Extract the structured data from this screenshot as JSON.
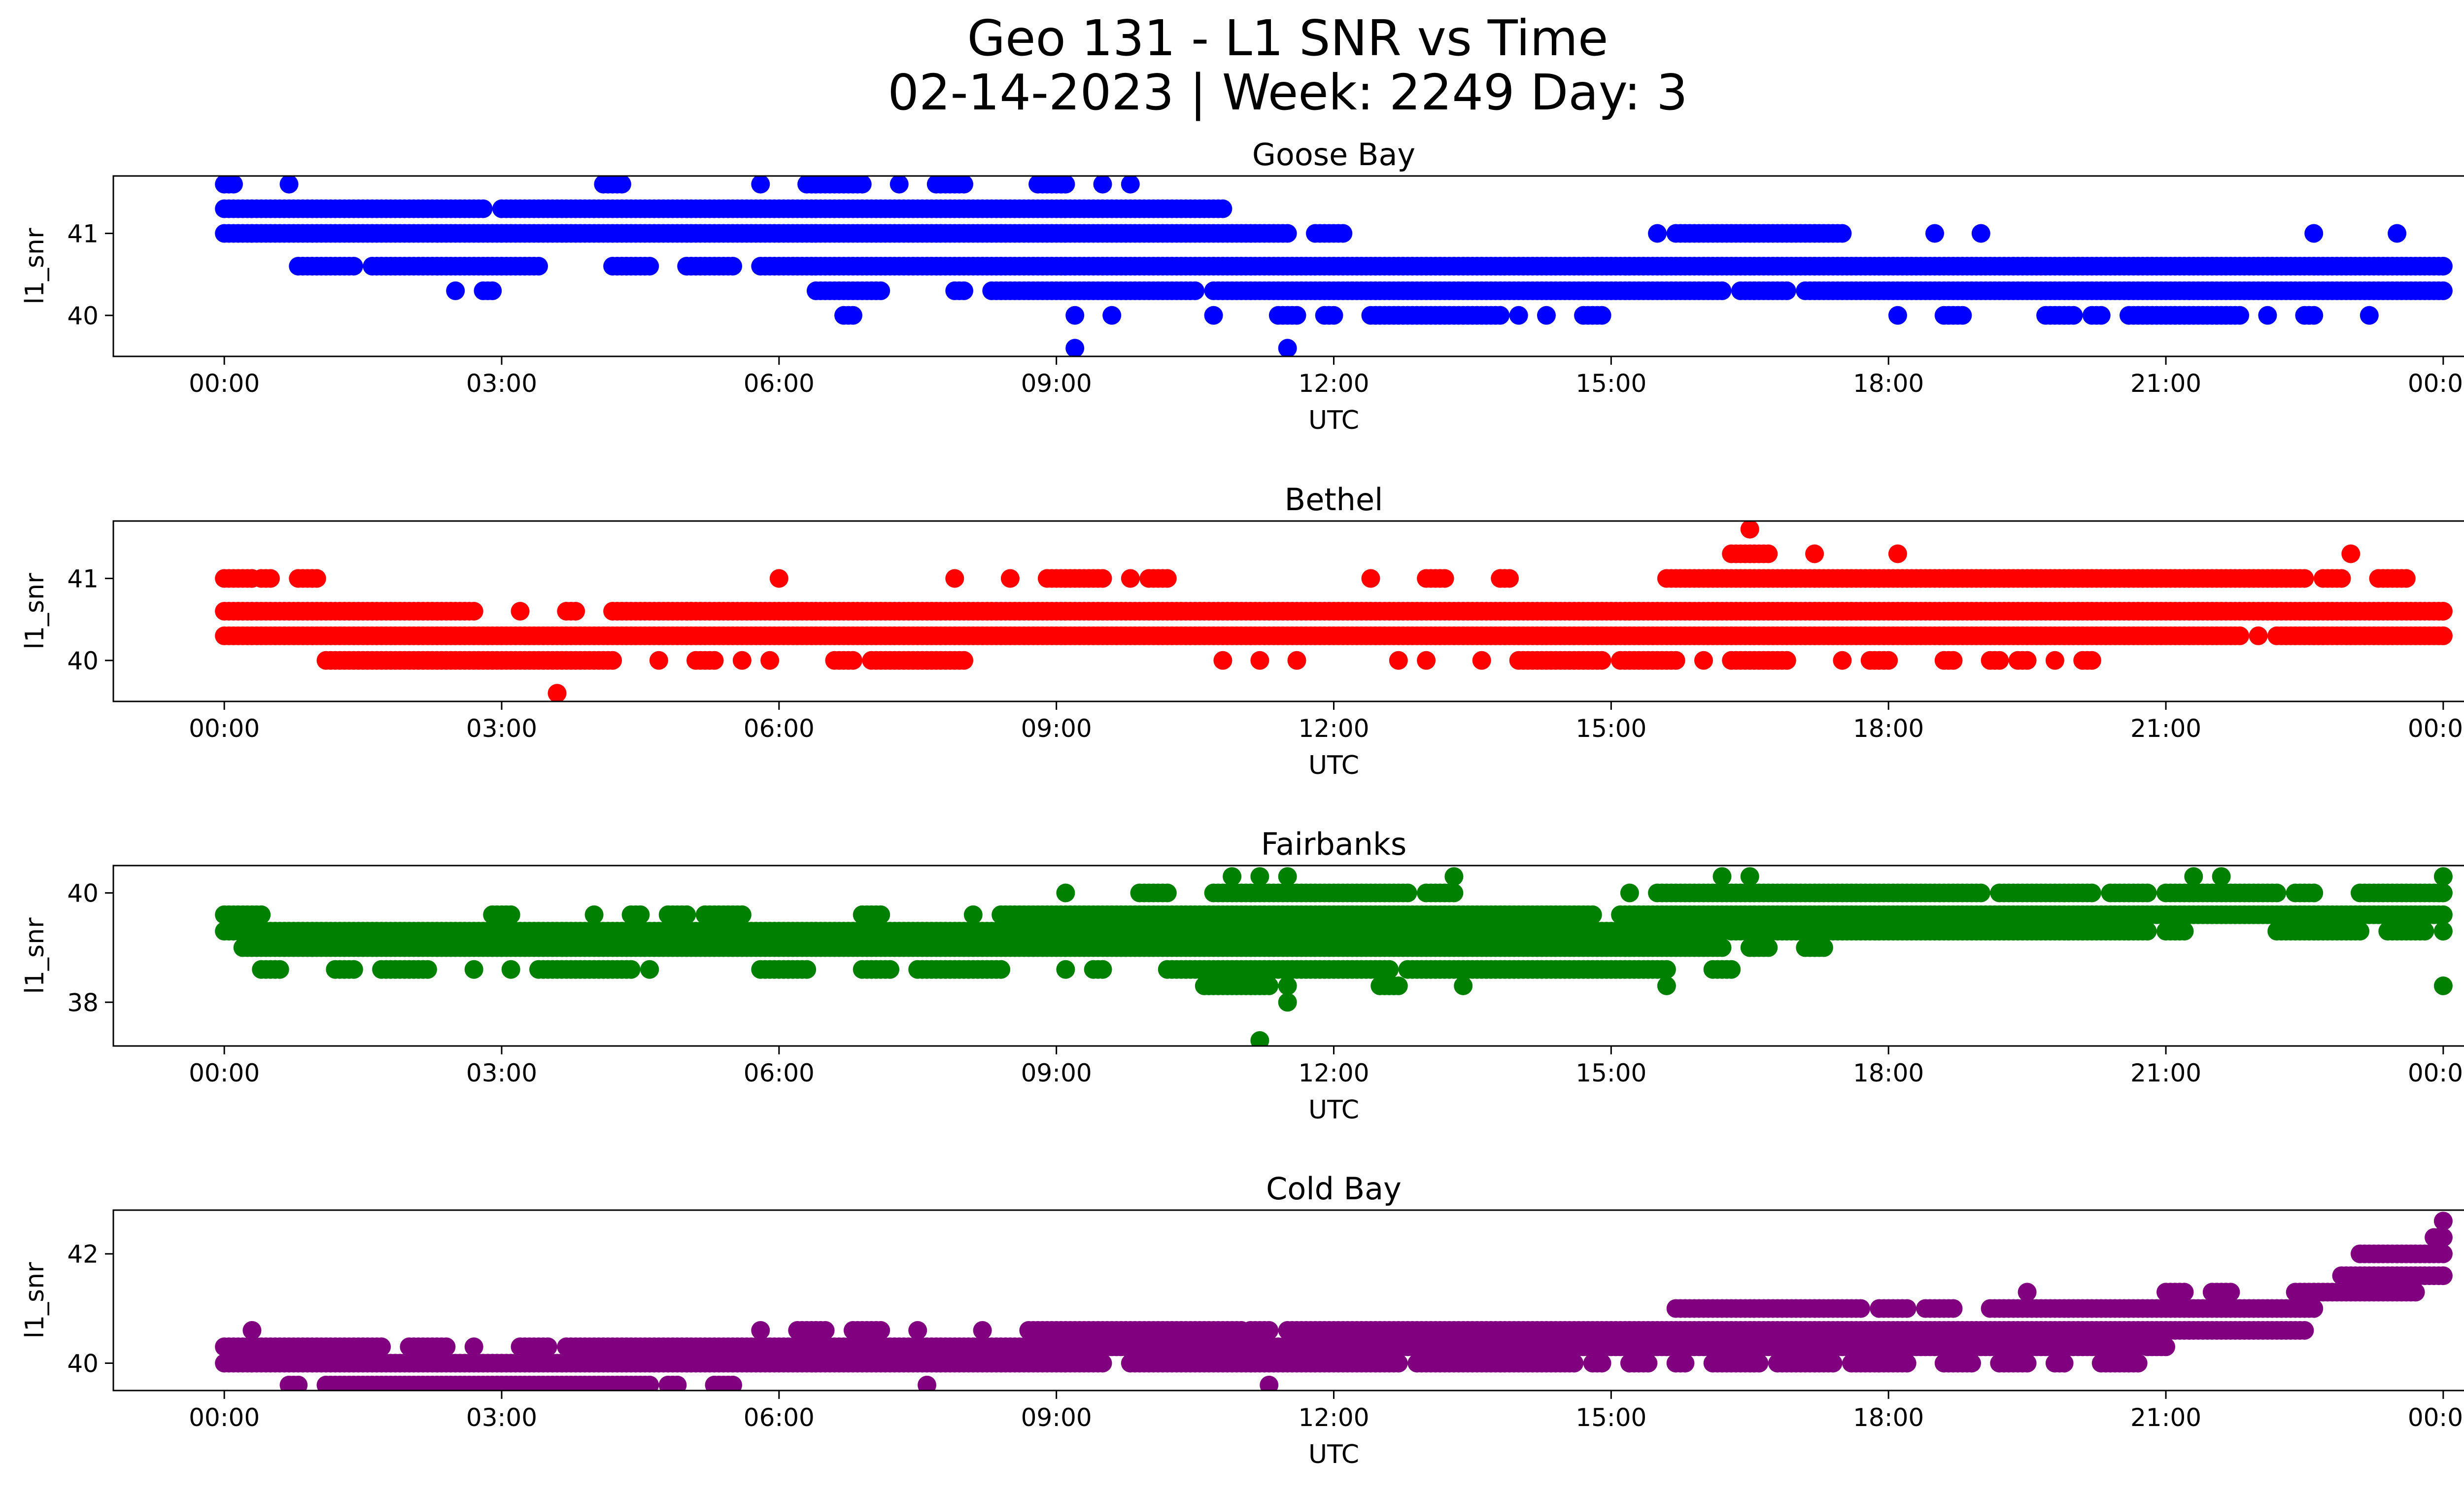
{
  "figure": {
    "title_line1": "Geo 131 - L1 SNR vs Time",
    "title_line2": "02-14-2023 | Week: 2249 Day: 3"
  },
  "chart_data": [
    {
      "type": "scatter",
      "title": "Goose Bay",
      "xlabel": "UTC",
      "ylabel": "l1_snr",
      "color": "#0000ff",
      "xticks": [
        "00:00",
        "03:00",
        "06:00",
        "09:00",
        "12:00",
        "15:00",
        "18:00",
        "21:00",
        "00:00"
      ],
      "xlim_hours": [
        -1.2,
        25.2
      ],
      "ylim": [
        39.5,
        41.7
      ],
      "yticks": [
        40,
        41
      ],
      "grid": false,
      "legend": "none",
      "bands": [
        {
          "y": 41.6,
          "ranges": [
            [
              0.0,
              0.1
            ],
            [
              0.7,
              0.7
            ],
            [
              4.1,
              4.3
            ],
            [
              5.8,
              5.8
            ],
            [
              6.3,
              6.9
            ],
            [
              7.3,
              7.3
            ],
            [
              7.7,
              8.0
            ],
            [
              8.8,
              9.1
            ],
            [
              9.5,
              9.5
            ],
            [
              9.8,
              9.8
            ]
          ]
        },
        {
          "y": 41.3,
          "ranges": [
            [
              0.0,
              2.8
            ],
            [
              3.0,
              10.8
            ]
          ]
        },
        {
          "y": 41.0,
          "ranges": [
            [
              0.0,
              11.5
            ],
            [
              11.8,
              12.1
            ],
            [
              15.5,
              15.5
            ],
            [
              15.7,
              17.5
            ],
            [
              18.5,
              18.5
            ],
            [
              19.0,
              19.0
            ],
            [
              22.6,
              22.6
            ],
            [
              23.5,
              23.5
            ]
          ]
        },
        {
          "y": 40.6,
          "ranges": [
            [
              0.8,
              1.4
            ],
            [
              1.6,
              3.4
            ],
            [
              4.2,
              4.6
            ],
            [
              5.0,
              5.5
            ],
            [
              5.8,
              24.0
            ]
          ]
        },
        {
          "y": 40.3,
          "ranges": [
            [
              2.5,
              2.5
            ],
            [
              2.8,
              2.9
            ],
            [
              6.4,
              7.1
            ],
            [
              7.9,
              8.0
            ],
            [
              8.3,
              10.5
            ],
            [
              10.7,
              16.2
            ],
            [
              16.4,
              16.9
            ],
            [
              17.1,
              24.0
            ]
          ]
        },
        {
          "y": 40.0,
          "ranges": [
            [
              6.7,
              6.8
            ],
            [
              9.2,
              9.2
            ],
            [
              9.6,
              9.6
            ],
            [
              10.7,
              10.7
            ],
            [
              11.4,
              11.6
            ],
            [
              11.9,
              12.0
            ],
            [
              12.4,
              13.8
            ],
            [
              14.0,
              14.0
            ],
            [
              14.3,
              14.3
            ],
            [
              14.7,
              14.9
            ],
            [
              18.1,
              18.1
            ],
            [
              18.6,
              18.8
            ],
            [
              19.7,
              20.0
            ],
            [
              20.2,
              20.3
            ],
            [
              20.6,
              21.8
            ],
            [
              22.1,
              22.1
            ],
            [
              22.5,
              22.6
            ],
            [
              23.2,
              23.2
            ]
          ]
        },
        {
          "y": 39.6,
          "ranges": [
            [
              9.2,
              9.2
            ],
            [
              11.5,
              11.5
            ]
          ]
        }
      ]
    },
    {
      "type": "scatter",
      "title": "Bethel",
      "xlabel": "UTC",
      "ylabel": "l1_snr",
      "color": "#ff0000",
      "xticks": [
        "00:00",
        "03:00",
        "06:00",
        "09:00",
        "12:00",
        "15:00",
        "18:00",
        "21:00",
        "00:00"
      ],
      "xlim_hours": [
        -1.2,
        25.2
      ],
      "ylim": [
        39.5,
        41.7
      ],
      "yticks": [
        40,
        41
      ],
      "grid": false,
      "legend": "none",
      "bands": [
        {
          "y": 41.6,
          "ranges": [
            [
              16.5,
              16.5
            ]
          ]
        },
        {
          "y": 41.3,
          "ranges": [
            [
              16.3,
              16.7
            ],
            [
              17.2,
              17.2
            ],
            [
              18.1,
              18.1
            ],
            [
              23.0,
              23.0
            ]
          ]
        },
        {
          "y": 41.0,
          "ranges": [
            [
              0.0,
              0.3
            ],
            [
              0.4,
              0.5
            ],
            [
              0.8,
              1.0
            ],
            [
              6.0,
              6.0
            ],
            [
              7.9,
              7.9
            ],
            [
              8.5,
              8.5
            ],
            [
              8.9,
              9.5
            ],
            [
              9.8,
              9.8
            ],
            [
              10.0,
              10.2
            ],
            [
              12.4,
              12.4
            ],
            [
              13.0,
              13.2
            ],
            [
              13.8,
              13.9
            ],
            [
              15.6,
              22.5
            ],
            [
              22.7,
              22.9
            ],
            [
              23.3,
              23.6
            ]
          ]
        },
        {
          "y": 40.6,
          "ranges": [
            [
              0.0,
              2.7
            ],
            [
              3.2,
              3.2
            ],
            [
              3.7,
              3.8
            ],
            [
              4.2,
              24.0
            ]
          ]
        },
        {
          "y": 40.3,
          "ranges": [
            [
              0.0,
              21.8
            ],
            [
              22.0,
              22.0
            ],
            [
              22.2,
              24.0
            ]
          ]
        },
        {
          "y": 40.0,
          "ranges": [
            [
              1.1,
              4.2
            ],
            [
              4.7,
              4.7
            ],
            [
              5.1,
              5.3
            ],
            [
              5.6,
              5.6
            ],
            [
              5.9,
              5.9
            ],
            [
              6.6,
              6.8
            ],
            [
              7.0,
              8.0
            ],
            [
              10.8,
              10.8
            ],
            [
              11.2,
              11.2
            ],
            [
              11.6,
              11.6
            ],
            [
              12.7,
              12.7
            ],
            [
              13.0,
              13.0
            ],
            [
              13.6,
              13.6
            ],
            [
              14.0,
              14.9
            ],
            [
              15.1,
              15.7
            ],
            [
              16.0,
              16.0
            ],
            [
              16.3,
              16.9
            ],
            [
              17.5,
              17.5
            ],
            [
              17.8,
              18.0
            ],
            [
              18.6,
              18.7
            ],
            [
              19.1,
              19.2
            ],
            [
              19.4,
              19.5
            ],
            [
              19.8,
              19.8
            ],
            [
              20.1,
              20.2
            ]
          ]
        },
        {
          "y": 39.6,
          "ranges": [
            [
              3.6,
              3.6
            ]
          ]
        }
      ]
    },
    {
      "type": "scatter",
      "title": "Fairbanks",
      "xlabel": "UTC",
      "ylabel": "l1_snr",
      "color": "#008000",
      "xticks": [
        "00:00",
        "03:00",
        "06:00",
        "09:00",
        "12:00",
        "15:00",
        "18:00",
        "21:00",
        "00:00"
      ],
      "xlim_hours": [
        -1.2,
        25.2
      ],
      "ylim": [
        37.2,
        40.5
      ],
      "yticks": [
        38,
        40
      ],
      "grid": false,
      "legend": "none",
      "bands": [
        {
          "y": 40.3,
          "ranges": [
            [
              10.9,
              10.9
            ],
            [
              11.2,
              11.2
            ],
            [
              11.5,
              11.5
            ],
            [
              13.3,
              13.3
            ],
            [
              16.2,
              16.2
            ],
            [
              16.5,
              16.5
            ],
            [
              21.3,
              21.3
            ],
            [
              21.6,
              21.6
            ],
            [
              24.0,
              24.0
            ]
          ]
        },
        {
          "y": 40.0,
          "ranges": [
            [
              9.1,
              9.1
            ],
            [
              9.9,
              10.2
            ],
            [
              10.7,
              12.8
            ],
            [
              13.0,
              13.3
            ],
            [
              15.2,
              15.2
            ],
            [
              15.5,
              19.0
            ],
            [
              19.2,
              20.2
            ],
            [
              20.4,
              20.8
            ],
            [
              21.0,
              22.2
            ],
            [
              22.4,
              22.6
            ],
            [
              23.1,
              24.0
            ]
          ]
        },
        {
          "y": 39.6,
          "ranges": [
            [
              0.0,
              0.4
            ],
            [
              2.9,
              3.1
            ],
            [
              4.0,
              4.0
            ],
            [
              4.4,
              4.5
            ],
            [
              4.8,
              5.0
            ],
            [
              5.2,
              5.6
            ],
            [
              6.9,
              7.1
            ],
            [
              8.1,
              8.1
            ],
            [
              8.4,
              14.8
            ],
            [
              15.1,
              24.0
            ]
          ]
        },
        {
          "y": 39.3,
          "ranges": [
            [
              0.0,
              16.2
            ],
            [
              16.3,
              20.8
            ],
            [
              21.0,
              21.2
            ],
            [
              22.2,
              23.1
            ],
            [
              23.4,
              23.8
            ],
            [
              24.0,
              24.0
            ]
          ]
        },
        {
          "y": 39.0,
          "ranges": [
            [
              0.2,
              16.2
            ],
            [
              16.5,
              16.7
            ],
            [
              17.1,
              17.3
            ]
          ]
        },
        {
          "y": 38.6,
          "ranges": [
            [
              0.4,
              0.6
            ],
            [
              1.2,
              1.4
            ],
            [
              1.7,
              2.2
            ],
            [
              2.7,
              2.7
            ],
            [
              3.1,
              3.1
            ],
            [
              3.4,
              4.4
            ],
            [
              4.6,
              4.6
            ],
            [
              5.8,
              6.3
            ],
            [
              6.9,
              7.2
            ],
            [
              7.5,
              8.4
            ],
            [
              9.1,
              9.1
            ],
            [
              9.4,
              9.5
            ],
            [
              10.2,
              12.6
            ],
            [
              12.8,
              15.6
            ],
            [
              16.1,
              16.3
            ]
          ]
        },
        {
          "y": 38.3,
          "ranges": [
            [
              10.6,
              11.3
            ],
            [
              11.5,
              11.5
            ],
            [
              12.5,
              12.7
            ],
            [
              13.4,
              13.4
            ],
            [
              15.6,
              15.6
            ],
            [
              24.0,
              24.0
            ]
          ]
        },
        {
          "y": 38.0,
          "ranges": [
            [
              11.5,
              11.5
            ]
          ]
        },
        {
          "y": 37.3,
          "ranges": [
            [
              11.2,
              11.2
            ]
          ]
        }
      ]
    },
    {
      "type": "scatter",
      "title": "Cold Bay",
      "xlabel": "UTC",
      "ylabel": "l1_snr",
      "color": "#800080",
      "xticks": [
        "00:00",
        "03:00",
        "06:00",
        "09:00",
        "12:00",
        "15:00",
        "18:00",
        "21:00",
        "00:00"
      ],
      "xlim_hours": [
        -1.2,
        25.2
      ],
      "ylim": [
        39.5,
        42.8
      ],
      "yticks": [
        40,
        42
      ],
      "grid": false,
      "legend": "none",
      "bands": [
        {
          "y": 42.6,
          "ranges": [
            [
              24.0,
              24.0
            ]
          ]
        },
        {
          "y": 42.3,
          "ranges": [
            [
              23.9,
              24.0
            ]
          ]
        },
        {
          "y": 42.0,
          "ranges": [
            [
              23.1,
              24.0
            ]
          ]
        },
        {
          "y": 41.6,
          "ranges": [
            [
              22.9,
              24.0
            ]
          ]
        },
        {
          "y": 41.3,
          "ranges": [
            [
              19.5,
              19.5
            ],
            [
              21.0,
              21.2
            ],
            [
              21.5,
              21.7
            ],
            [
              22.4,
              23.7
            ]
          ]
        },
        {
          "y": 41.0,
          "ranges": [
            [
              15.7,
              17.7
            ],
            [
              17.9,
              18.2
            ],
            [
              18.4,
              18.7
            ],
            [
              19.1,
              22.6
            ]
          ]
        },
        {
          "y": 40.6,
          "ranges": [
            [
              0.3,
              0.3
            ],
            [
              5.8,
              5.8
            ],
            [
              6.2,
              6.5
            ],
            [
              6.8,
              7.1
            ],
            [
              7.5,
              7.5
            ],
            [
              8.2,
              8.2
            ],
            [
              8.7,
              11.0
            ],
            [
              11.1,
              11.3
            ],
            [
              11.5,
              22.5
            ]
          ]
        },
        {
          "y": 40.3,
          "ranges": [
            [
              0.0,
              1.7
            ],
            [
              2.0,
              2.4
            ],
            [
              2.7,
              2.7
            ],
            [
              3.2,
              3.5
            ],
            [
              3.7,
              20.7
            ],
            [
              20.8,
              21.0
            ]
          ]
        },
        {
          "y": 40.0,
          "ranges": [
            [
              0.0,
              9.5
            ],
            [
              9.8,
              12.7
            ],
            [
              12.9,
              14.6
            ],
            [
              14.8,
              14.9
            ],
            [
              15.2,
              15.4
            ],
            [
              15.7,
              15.8
            ],
            [
              16.1,
              16.6
            ],
            [
              16.8,
              17.4
            ],
            [
              17.6,
              18.2
            ],
            [
              18.6,
              18.9
            ],
            [
              19.2,
              19.5
            ],
            [
              19.8,
              19.9
            ],
            [
              20.3,
              20.7
            ]
          ]
        },
        {
          "y": 39.6,
          "ranges": [
            [
              0.7,
              0.8
            ],
            [
              1.1,
              4.6
            ],
            [
              4.8,
              4.9
            ],
            [
              5.3,
              5.5
            ],
            [
              7.6,
              7.6
            ],
            [
              11.3,
              11.3
            ]
          ]
        }
      ]
    }
  ]
}
